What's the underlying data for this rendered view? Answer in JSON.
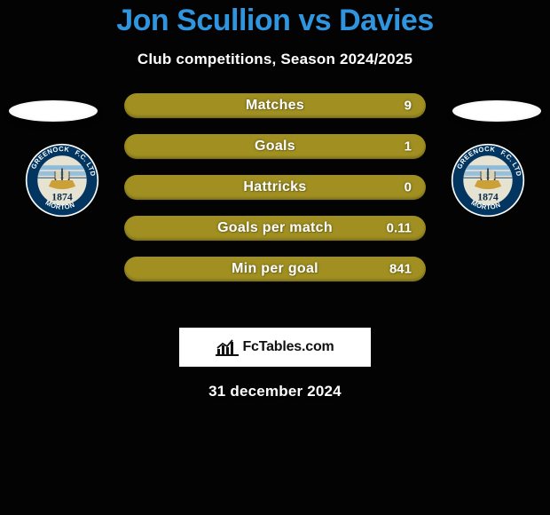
{
  "title": "Jon Scullion vs Davies",
  "subtitle": "Club competitions, Season 2024/2025",
  "date_line": "31 december 2024",
  "attribution": "FcTables.com",
  "colors": {
    "accent": "#2f95df",
    "bar": "#a19021",
    "background": "#030304",
    "text_on_bar": "#fefefe"
  },
  "crest": {
    "use_same_for_both": true,
    "outer_text_top": "GREENOCK",
    "outer_text_right": "F.C. LTD",
    "outer_text_left": "MORTON",
    "year": "1874",
    "ring_color": "#02355f",
    "inner_bg": "#e6e3d2",
    "stripe_color": "#8fbbdb",
    "boat_color": "#caa037"
  },
  "bars": [
    {
      "label": "Matches",
      "left": "",
      "right": "9"
    },
    {
      "label": "Goals",
      "left": "",
      "right": "1"
    },
    {
      "label": "Hattricks",
      "left": "",
      "right": "0"
    },
    {
      "label": "Goals per match",
      "left": "",
      "right": "0.11"
    },
    {
      "label": "Min per goal",
      "left": "",
      "right": "841"
    }
  ]
}
